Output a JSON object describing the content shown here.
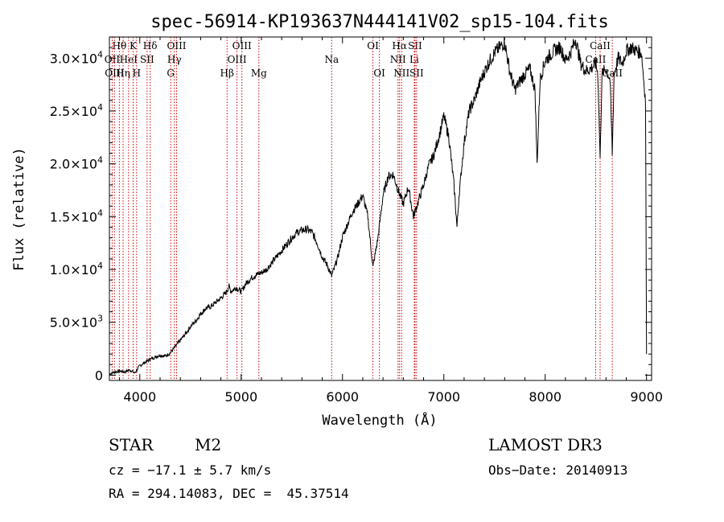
{
  "chart_data": {
    "type": "line",
    "title": "spec-56914-KP193637N444141V02_sp15-104.fits",
    "xlabel": "Wavelength (Å)",
    "ylabel": "Flux (relative)",
    "xlim": [
      3700,
      9050
    ],
    "ylim": [
      -500,
      32000
    ],
    "x_ticks": [
      4000,
      5000,
      6000,
      7000,
      8000,
      9000
    ],
    "x_tick_labels": [
      "4000",
      "5000",
      "6000",
      "7000",
      "8000",
      "9000"
    ],
    "y_ticks": [
      {
        "value": 0,
        "mant": "0",
        "exp": ""
      },
      {
        "value": 5000,
        "mant": "5.0×10",
        "exp": "3"
      },
      {
        "value": 10000,
        "mant": "1.0×10",
        "exp": "4"
      },
      {
        "value": 15000,
        "mant": "1.5×10",
        "exp": "4"
      },
      {
        "value": 20000,
        "mant": "2.0×10",
        "exp": "4"
      },
      {
        "value": 25000,
        "mant": "2.5×10",
        "exp": "4"
      },
      {
        "value": 30000,
        "mant": "3.0×10",
        "exp": "4"
      }
    ],
    "spectrum": {
      "x": [
        3700,
        3750,
        3800,
        3850,
        3900,
        3950,
        4000,
        4050,
        4100,
        4150,
        4200,
        4250,
        4300,
        4350,
        4400,
        4450,
        4500,
        4550,
        4600,
        4650,
        4700,
        4750,
        4800,
        4850,
        4880,
        4900,
        4950,
        5000,
        5050,
        5100,
        5150,
        5200,
        5250,
        5300,
        5350,
        5400,
        5450,
        5500,
        5550,
        5600,
        5650,
        5700,
        5750,
        5800,
        5850,
        5893,
        5950,
        6000,
        6050,
        6100,
        6150,
        6200,
        6250,
        6300,
        6350,
        6400,
        6450,
        6500,
        6550,
        6600,
        6650,
        6700,
        6750,
        6800,
        6850,
        6900,
        6950,
        7000,
        7050,
        7100,
        7130,
        7150,
        7200,
        7250,
        7300,
        7350,
        7400,
        7450,
        7500,
        7550,
        7600,
        7650,
        7700,
        7750,
        7800,
        7850,
        7900,
        7920,
        7950,
        8000,
        8050,
        8100,
        8150,
        8200,
        8250,
        8300,
        8350,
        8400,
        8450,
        8500,
        8520,
        8542,
        8560,
        8600,
        8640,
        8662,
        8680,
        8720,
        8760,
        8800,
        8850,
        8900,
        8950,
        8990,
        9000
      ],
      "y": [
        100,
        300,
        400,
        300,
        500,
        200,
        900,
        1200,
        1500,
        1700,
        1900,
        1800,
        2100,
        2700,
        3300,
        3900,
        4600,
        5100,
        5800,
        6300,
        6500,
        6900,
        7300,
        7800,
        8400,
        7900,
        8300,
        7900,
        8700,
        9200,
        9500,
        9700,
        10000,
        10600,
        11200,
        11800,
        12400,
        13000,
        13500,
        13700,
        13800,
        13500,
        12500,
        11200,
        10400,
        9400,
        11000,
        13100,
        14300,
        15500,
        16200,
        17000,
        15000,
        10200,
        13000,
        17000,
        18800,
        19000,
        17500,
        16200,
        17800,
        15000,
        16500,
        18000,
        19800,
        20800,
        22500,
        24500,
        22500,
        18000,
        14000,
        17000,
        22000,
        25000,
        26000,
        27500,
        28700,
        29700,
        30500,
        31000,
        31500,
        28800,
        27000,
        27800,
        28500,
        29000,
        27000,
        20000,
        28000,
        29800,
        30300,
        30800,
        31000,
        29800,
        30500,
        31800,
        29500,
        28800,
        29000,
        29500,
        28500,
        20500,
        28500,
        29000,
        28000,
        21000,
        28500,
        30000,
        29500,
        30700,
        31000,
        30700,
        30500,
        26000,
        2000
      ]
    },
    "lines": [
      {
        "label": "Hθ",
        "x": 3798,
        "row": 0
      },
      {
        "label": "OII",
        "x": 3727,
        "row": 1
      },
      {
        "label": "OIII",
        "x": 3750,
        "row": 2
      },
      {
        "label": "Hη",
        "x": 3835,
        "row": 2
      },
      {
        "label": "HeI",
        "x": 3889,
        "row": 1
      },
      {
        "label": "K",
        "x": 3934,
        "row": 0
      },
      {
        "label": "H",
        "x": 3969,
        "row": 2
      },
      {
        "label": "SII",
        "x": 4072,
        "row": 1
      },
      {
        "label": "Hδ",
        "x": 4102,
        "row": 0
      },
      {
        "label": "G",
        "x": 4305,
        "row": 2
      },
      {
        "label": "Hγ",
        "x": 4341,
        "row": 1
      },
      {
        "label": "OIII",
        "x": 4363,
        "row": 0
      },
      {
        "label": "Hβ",
        "x": 4861,
        "row": 2
      },
      {
        "label": "OIII",
        "x": 4959,
        "row": 1
      },
      {
        "label": "OIII",
        "x": 5007,
        "row": 0
      },
      {
        "label": "Mg",
        "x": 5175,
        "row": 2
      },
      {
        "label": "Na",
        "x": 5893,
        "row": 1
      },
      {
        "label": "OI",
        "x": 6300,
        "row": 0
      },
      {
        "label": "OI",
        "x": 6364,
        "row": 2
      },
      {
        "label": "NII",
        "x": 6548,
        "row": 1
      },
      {
        "label": "Hα",
        "x": 6563,
        "row": 0
      },
      {
        "label": "NII",
        "x": 6583,
        "row": 2
      },
      {
        "label": "Li",
        "x": 6708,
        "row": 1
      },
      {
        "label": "SII",
        "x": 6716,
        "row": 0
      },
      {
        "label": "SII",
        "x": 6731,
        "row": 2
      },
      {
        "label": "CaII",
        "x": 8498,
        "row": 1
      },
      {
        "label": "CaII",
        "x": 8542,
        "row": 0
      },
      {
        "label": "CaII",
        "x": 8662,
        "row": 2
      }
    ],
    "line_color": "#cc0000"
  },
  "info": {
    "star": "STAR",
    "subclass": "M2",
    "cz": "cz = −17.1 ± 5.7 km/s",
    "radec": "RA = 294.14083, DEC =  45.37514",
    "survey": "LAMOST DR3",
    "obsdate": "Obs−Date: 20140913"
  }
}
